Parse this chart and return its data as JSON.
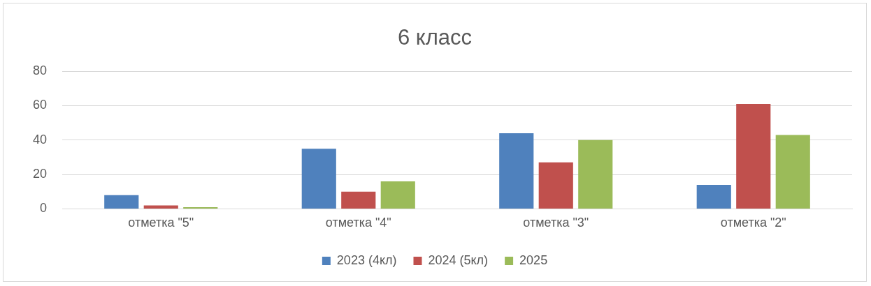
{
  "chart_data": {
    "type": "bar",
    "title": "6 класс",
    "categories": [
      "отметка \"5\"",
      "отметка \"4\"",
      "отметка \"3\"",
      "отметка \"2\""
    ],
    "series": [
      {
        "name": "2023 (4кл)",
        "color": "#4f81bd",
        "values": [
          8,
          35,
          44,
          14
        ]
      },
      {
        "name": "2024 (5кл)",
        "color": "#c0504d",
        "values": [
          2,
          10,
          27,
          61
        ]
      },
      {
        "name": "2025",
        "color": "#9bbb59",
        "values": [
          1,
          16,
          40,
          43
        ]
      }
    ],
    "ylim": [
      0,
      80
    ],
    "yticks": [
      0,
      20,
      40,
      60,
      80
    ],
    "grid": "y",
    "legend": "bottom"
  }
}
